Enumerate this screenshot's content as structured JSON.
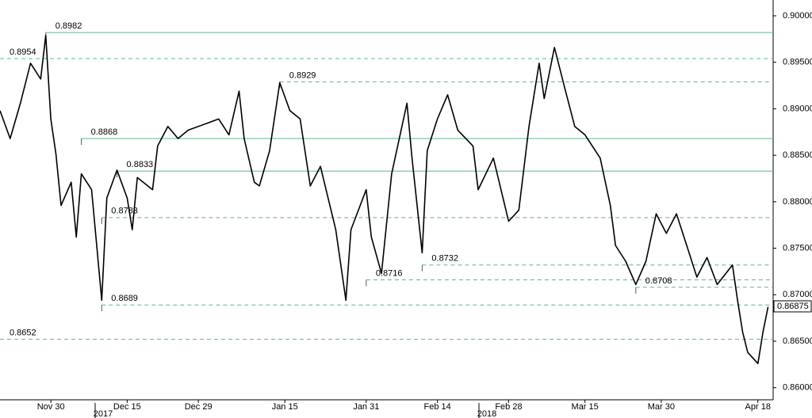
{
  "chart_data": {
    "type": "line",
    "x": [
      "2017-11-20",
      "2017-11-22",
      "2017-11-24",
      "2017-11-26",
      "2017-11-28",
      "2017-11-29",
      "2017-11-30",
      "2017-12-01",
      "2017-12-02",
      "2017-12-04",
      "2017-12-05",
      "2017-12-06",
      "2017-12-08",
      "2017-12-10",
      "2017-12-11",
      "2017-12-13",
      "2017-12-15",
      "2017-12-16",
      "2017-12-17",
      "2017-12-20",
      "2017-12-21",
      "2017-12-23",
      "2017-12-25",
      "2017-12-27",
      "2017-12-31",
      "2018-01-02",
      "2018-01-04",
      "2018-01-06",
      "2018-01-07",
      "2018-01-09",
      "2018-01-10",
      "2018-01-12",
      "2018-01-14",
      "2018-01-16",
      "2018-01-18",
      "2018-01-20",
      "2018-01-22",
      "2018-01-25",
      "2018-01-27",
      "2018-01-28",
      "2018-01-31",
      "2018-02-01",
      "2018-02-03",
      "2018-02-05",
      "2018-02-08",
      "2018-02-09",
      "2018-02-11",
      "2018-02-12",
      "2018-02-14",
      "2018-02-16",
      "2018-02-18",
      "2018-02-21",
      "2018-02-22",
      "2018-02-25",
      "2018-02-28",
      "2018-03-02",
      "2018-03-04",
      "2018-03-06",
      "2018-03-07",
      "2018-03-09",
      "2018-03-11",
      "2018-03-13",
      "2018-03-15",
      "2018-03-18",
      "2018-03-20",
      "2018-03-21",
      "2018-03-23",
      "2018-03-25",
      "2018-03-27",
      "2018-03-29",
      "2018-03-31",
      "2018-04-02",
      "2018-04-04",
      "2018-04-06",
      "2018-04-08",
      "2018-04-10",
      "2018-04-13",
      "2018-04-14",
      "2018-04-15",
      "2018-04-16",
      "2018-04-18",
      "2018-04-19",
      "2018-04-20"
    ],
    "values": [
      0.8898,
      0.8868,
      0.8906,
      0.8949,
      0.8932,
      0.8979,
      0.8889,
      0.8851,
      0.8796,
      0.8821,
      0.8762,
      0.883,
      0.8813,
      0.8694,
      0.8804,
      0.8834,
      0.8804,
      0.877,
      0.8826,
      0.8813,
      0.886,
      0.8881,
      0.8868,
      0.8877,
      0.8885,
      0.8889,
      0.8872,
      0.8919,
      0.8868,
      0.8821,
      0.8817,
      0.8855,
      0.8928,
      0.8898,
      0.8889,
      0.8817,
      0.8838,
      0.877,
      0.8694,
      0.877,
      0.8813,
      0.8762,
      0.8723,
      0.883,
      0.8906,
      0.8847,
      0.8745,
      0.8855,
      0.8889,
      0.8915,
      0.8877,
      0.886,
      0.8813,
      0.8847,
      0.8779,
      0.8791,
      0.8881,
      0.8949,
      0.8911,
      0.8966,
      0.8923,
      0.8881,
      0.8872,
      0.8847,
      0.8796,
      0.8753,
      0.8736,
      0.8711,
      0.8736,
      0.8787,
      0.8766,
      0.8787,
      0.8753,
      0.8719,
      0.874,
      0.8711,
      0.8732,
      0.8694,
      0.866,
      0.8638,
      0.8626,
      0.866,
      0.8687
    ],
    "color": "#000000",
    "xlim": [
      "2017-11-20",
      "2018-04-21"
    ],
    "xticks": [
      {
        "value": "2017-11-30",
        "label": "Nov 30"
      },
      {
        "value": "2017-12-15",
        "label": "Dec 15"
      },
      {
        "value": "2017-12-29",
        "label": "Dec 29"
      },
      {
        "value": "2018-01-15",
        "label": "Jan 15"
      },
      {
        "value": "2018-01-31",
        "label": "Jan 31"
      },
      {
        "value": "2018-02-14",
        "label": "Feb 14"
      },
      {
        "value": "2018-02-28",
        "label": "Feb 28"
      },
      {
        "value": "2018-03-15",
        "label": "Mar 15"
      },
      {
        "value": "2018-03-30",
        "label": "Mar 30"
      },
      {
        "value": "2018-04-18",
        "label": "Apr 18"
      }
    ],
    "year_labels": [
      "2017",
      "2018"
    ],
    "ylim": [
      0.8587,
      0.9017
    ],
    "yticks": [
      {
        "value": 0.86,
        "label": "0.86000"
      },
      {
        "value": 0.865,
        "label": "0.86500"
      },
      {
        "value": 0.87,
        "label": "0.87000"
      },
      {
        "value": 0.875,
        "label": "0.87500"
      },
      {
        "value": 0.88,
        "label": "0.88000"
      },
      {
        "value": 0.885,
        "label": "0.88500"
      },
      {
        "value": 0.89,
        "label": "0.89000"
      },
      {
        "value": 0.895,
        "label": "0.89500"
      },
      {
        "value": 0.9,
        "label": "0.90000"
      }
    ],
    "level_color": "#5cb88a",
    "levels": [
      {
        "value": 0.8982,
        "start": "2017-11-29",
        "style": "solid"
      },
      {
        "value": 0.8954,
        "start": "2017-11-20",
        "style": "dashed"
      },
      {
        "value": 0.8929,
        "start": "2018-01-14",
        "style": "dashed"
      },
      {
        "value": 0.8868,
        "start": "2017-12-06",
        "style": "solid"
      },
      {
        "value": 0.8833,
        "start": "2017-12-13",
        "style": "solid"
      },
      {
        "value": 0.8783,
        "start": "2017-12-10",
        "style": "dashed"
      },
      {
        "value": 0.8732,
        "start": "2018-02-11",
        "style": "dashed"
      },
      {
        "value": 0.8716,
        "start": "2018-01-31",
        "style": "dashed"
      },
      {
        "value": 0.8708,
        "start": "2018-03-25",
        "style": "dashed"
      },
      {
        "value": 0.8689,
        "start": "2017-12-10",
        "style": "dashed"
      },
      {
        "value": 0.8652,
        "start": "2017-11-20",
        "style": "dashed"
      }
    ],
    "last_price": 0.86875
  }
}
